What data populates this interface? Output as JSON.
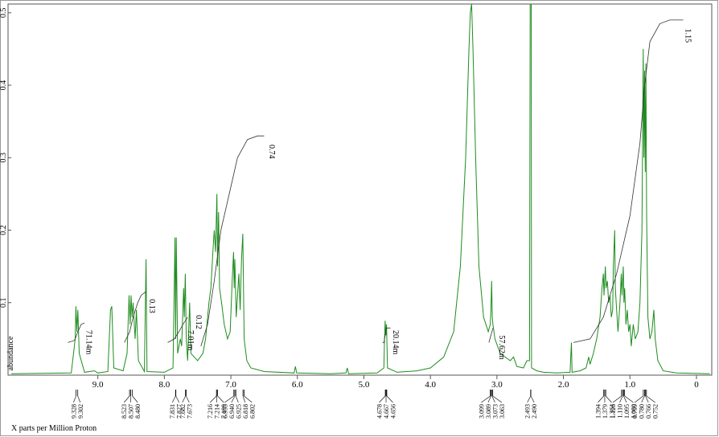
{
  "chart_data": {
    "type": "line",
    "y_label": "abundance",
    "x_label": "X   parts per Million   Proton",
    "xlim": [
      10.35,
      -0.23
    ],
    "ylim": [
      0,
      0.512
    ],
    "xticks": [
      {
        "value": 9,
        "label": "9.0"
      },
      {
        "value": 8,
        "label": "8.0"
      },
      {
        "value": 7,
        "label": "7.0"
      },
      {
        "value": 6,
        "label": "6.0"
      },
      {
        "value": 5,
        "label": "5.0"
      },
      {
        "value": 4,
        "label": "4.0"
      },
      {
        "value": 3,
        "label": "3.0"
      },
      {
        "value": 2,
        "label": "2.0"
      },
      {
        "value": 1,
        "label": "1.0"
      },
      0
    ],
    "yticks": [
      0.1,
      0.2,
      0.3,
      0.4,
      0.5
    ],
    "color": "#1e8c1e",
    "integral_color": "#333333",
    "x": [
      10.3,
      9.4,
      9.34,
      9.33,
      9.315,
      9.3,
      9.28,
      9.2,
      9.05,
      9.0,
      8.85,
      8.81,
      8.79,
      8.76,
      8.62,
      8.56,
      8.53,
      8.515,
      8.5,
      8.485,
      8.47,
      8.44,
      8.42,
      8.39,
      8.3,
      8.275,
      8.26,
      8.0,
      7.87,
      7.84,
      7.83,
      7.82,
      7.8,
      7.76,
      7.74,
      7.71,
      7.7,
      7.685,
      7.67,
      7.65,
      7.62,
      7.6,
      7.5,
      7.42,
      7.38,
      7.33,
      7.3,
      7.27,
      7.25,
      7.23,
      7.21,
      7.2,
      7.185,
      7.17,
      7.14,
      7.1,
      7.05,
      7.01,
      6.98,
      6.96,
      6.95,
      6.94,
      6.92,
      6.88,
      6.86,
      6.84,
      6.82,
      6.8,
      6.76,
      6.7,
      6.5,
      6.05,
      6.03,
      6.01,
      5.5,
      5.27,
      5.25,
      5.23,
      4.8,
      4.7,
      4.69,
      4.68,
      4.67,
      4.66,
      4.645,
      4.5,
      4.2,
      4.0,
      3.8,
      3.65,
      3.55,
      3.47,
      3.42,
      3.4,
      3.38,
      3.36,
      3.32,
      3.27,
      3.2,
      3.13,
      3.1,
      3.09,
      3.08,
      3.07,
      3.06,
      3.03,
      2.95,
      2.8,
      2.75,
      2.7,
      2.6,
      2.55,
      2.51,
      2.5,
      2.485,
      2.48,
      2.4,
      2.3,
      2.1,
      1.9,
      1.88,
      1.87,
      1.75,
      1.66,
      1.62,
      1.6,
      1.55,
      1.5,
      1.45,
      1.42,
      1.4,
      1.39,
      1.37,
      1.36,
      1.34,
      1.32,
      1.3,
      1.28,
      1.26,
      1.25,
      1.23,
      1.22,
      1.2,
      1.18,
      1.15,
      1.13,
      1.12,
      1.1,
      1.09,
      1.08,
      1.06,
      1.04,
      1.02,
      1.0,
      0.98,
      0.95,
      0.92,
      0.88,
      0.85,
      0.82,
      0.8,
      0.79,
      0.78,
      0.77,
      0.76,
      0.75,
      0.73,
      0.7,
      0.67,
      0.64,
      0.62,
      0.58,
      0.5,
      0.3,
      -0.2
    ],
    "values": [
      0.002,
      0.003,
      0.05,
      0.095,
      0.06,
      0.09,
      0.03,
      0.004,
      0.006,
      0.003,
      0.005,
      0.09,
      0.095,
      0.01,
      0.006,
      0.03,
      0.11,
      0.07,
      0.11,
      0.08,
      0.1,
      0.05,
      0.09,
      0.02,
      0.005,
      0.16,
      0.005,
      0.004,
      0.01,
      0.19,
      0.05,
      0.19,
      0.03,
      0.05,
      0.04,
      0.12,
      0.08,
      0.14,
      0.05,
      0.02,
      0.1,
      0.03,
      0.02,
      0.03,
      0.05,
      0.1,
      0.12,
      0.17,
      0.2,
      0.17,
      0.25,
      0.15,
      0.225,
      0.12,
      0.1,
      0.07,
      0.05,
      0.06,
      0.13,
      0.17,
      0.12,
      0.16,
      0.08,
      0.14,
      0.09,
      0.16,
      0.195,
      0.05,
      0.02,
      0.01,
      0.005,
      0.003,
      0.012,
      0.003,
      0.002,
      0.003,
      0.01,
      0.002,
      0.003,
      0.01,
      0.05,
      0.075,
      0.055,
      0.07,
      0.01,
      0.004,
      0.006,
      0.01,
      0.025,
      0.06,
      0.15,
      0.3,
      0.45,
      0.5,
      0.512,
      0.45,
      0.3,
      0.15,
      0.08,
      0.06,
      0.07,
      0.09,
      0.13,
      0.08,
      0.07,
      0.05,
      0.03,
      0.02,
      0.025,
      0.012,
      0.01,
      0.02,
      0.02,
      0.512,
      0.512,
      0.01,
      0.006,
      0.004,
      0.003,
      0.004,
      0.045,
      0.004,
      0.006,
      0.01,
      0.025,
      0.015,
      0.03,
      0.05,
      0.08,
      0.12,
      0.14,
      0.11,
      0.15,
      0.12,
      0.13,
      0.1,
      0.11,
      0.08,
      0.09,
      0.15,
      0.2,
      0.12,
      0.09,
      0.06,
      0.1,
      0.14,
      0.11,
      0.15,
      0.1,
      0.12,
      0.07,
      0.09,
      0.06,
      0.07,
      0.04,
      0.07,
      0.05,
      0.06,
      0.1,
      0.2,
      0.45,
      0.3,
      0.42,
      0.28,
      0.43,
      0.22,
      0.08,
      0.05,
      0.06,
      0.09,
      0.05,
      0.02,
      0.006,
      0.003,
      0.002
    ],
    "integrals": [
      {
        "x": [
          9.45,
          9.35,
          9.3,
          9.25,
          9.2
        ],
        "values": [
          0.045,
          0.048,
          0.06,
          0.07,
          0.072
        ]
      },
      {
        "x": [
          8.6,
          8.52,
          8.47,
          8.4,
          8.35,
          8.28
        ],
        "values": [
          0.045,
          0.06,
          0.08,
          0.1,
          0.11,
          0.115
        ]
      },
      {
        "x": [
          7.95,
          7.85,
          7.78,
          7.72,
          7.65
        ],
        "values": [
          0.045,
          0.05,
          0.06,
          0.07,
          0.08
        ]
      },
      {
        "x": [
          7.45,
          7.35,
          7.25,
          7.15,
          7.0,
          6.9,
          6.75,
          6.6,
          6.5
        ],
        "values": [
          0.04,
          0.07,
          0.13,
          0.2,
          0.26,
          0.3,
          0.325,
          0.33,
          0.33
        ]
      },
      {
        "x": [
          4.72,
          4.7,
          4.68,
          4.66,
          4.6
        ],
        "values": [
          0.045,
          0.045,
          0.055,
          0.065,
          0.065
        ]
      },
      {
        "x": [
          3.12,
          3.09,
          3.06
        ],
        "values": [
          0.045,
          0.055,
          0.065
        ]
      },
      {
        "x": [
          1.85,
          1.6,
          1.4,
          1.2,
          1.0,
          0.85,
          0.78,
          0.7,
          0.55,
          0.4,
          0.2
        ],
        "values": [
          0.045,
          0.05,
          0.08,
          0.14,
          0.22,
          0.32,
          0.4,
          0.46,
          0.485,
          0.49,
          0.49
        ]
      }
    ],
    "annotations": [
      {
        "text": "71.14m",
        "x": 9.17,
        "y": 0.062
      },
      {
        "text": "0.13",
        "x": 8.22,
        "y": 0.105
      },
      {
        "text": "7.01m",
        "x": 7.64,
        "y": 0.062
      },
      {
        "text": "0.12",
        "x": 7.52,
        "y": 0.083
      },
      {
        "text": "0.74",
        "x": 6.42,
        "y": 0.318
      },
      {
        "text": "20.14m",
        "x": 4.56,
        "y": 0.062
      },
      {
        "text": "57.62m",
        "x": 2.96,
        "y": 0.055
      },
      {
        "text": "1.15",
        "x": 0.16,
        "y": 0.478
      }
    ],
    "peak_labels": [
      {
        "value": 9.328,
        "label": "9.328"
      },
      {
        "value": 9.302,
        "label": "9.302"
      },
      {
        "value": 8.523,
        "label": "8.523"
      },
      {
        "value": 8.507,
        "label": "8.507"
      },
      {
        "value": 8.48,
        "label": "8.480"
      },
      {
        "value": 7.831,
        "label": "7.831"
      },
      {
        "value": 7.827,
        "label": "7.827"
      },
      {
        "value": 7.682,
        "label": "7.682"
      },
      {
        "value": 7.673,
        "label": "7.673"
      },
      {
        "value": 7.216,
        "label": "7.216"
      },
      {
        "value": 7.214,
        "label": "7.214"
      },
      {
        "value": 7.199,
        "label": "7.199"
      },
      {
        "value": 6.955,
        "label": "6.955"
      },
      {
        "value": 6.94,
        "label": "6.940"
      },
      {
        "value": 6.925,
        "label": "6.925"
      },
      {
        "value": 6.818,
        "label": "6.818"
      },
      {
        "value": 6.802,
        "label": "6.802"
      },
      {
        "value": 4.678,
        "label": "4.678"
      },
      {
        "value": 4.667,
        "label": "4.667"
      },
      {
        "value": 4.656,
        "label": "4.656"
      },
      {
        "value": 3.099,
        "label": "3.099"
      },
      {
        "value": 3.089,
        "label": "3.089"
      },
      {
        "value": 3.073,
        "label": "3.073"
      },
      {
        "value": 3.063,
        "label": "3.063"
      },
      {
        "value": 2.493,
        "label": "2.493"
      },
      {
        "value": 2.49,
        "label": "2.490"
      },
      {
        "value": 1.394,
        "label": "1.394"
      },
      {
        "value": 1.379,
        "label": "1.379"
      },
      {
        "value": 1.364,
        "label": "1.364"
      },
      {
        "value": 1.126,
        "label": "1.126"
      },
      {
        "value": 1.11,
        "label": "1.110"
      },
      {
        "value": 1.095,
        "label": "1.095"
      },
      {
        "value": 1.08,
        "label": "1.080"
      },
      {
        "value": 0.799,
        "label": "0.799"
      },
      {
        "value": 0.78,
        "label": "0.780"
      },
      {
        "value": 0.766,
        "label": "0.766"
      },
      {
        "value": 0.752,
        "label": "0.752"
      }
    ]
  }
}
